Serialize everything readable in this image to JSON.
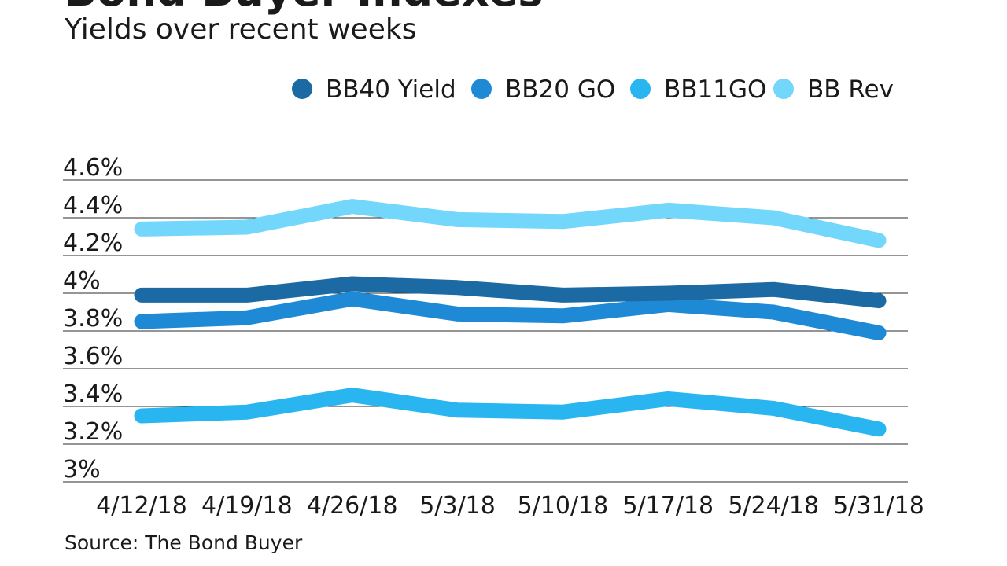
{
  "title": "Bond Buyer Indexes",
  "subtitle": "Yields over recent weeks",
  "source": "Source: The Bond Buyer",
  "chart_data": {
    "type": "line",
    "title": "Bond Buyer Indexes",
    "subtitle": "Yields over recent weeks",
    "xlabel": "",
    "ylabel": "",
    "categories": [
      "4/12/18",
      "4/19/18",
      "4/26/18",
      "5/3/18",
      "5/10/18",
      "5/17/18",
      "5/24/18",
      "5/31/18"
    ],
    "y_ticks": [
      "4.6%",
      "4.4%",
      "4.2%",
      "4%",
      "3.8%",
      "3.6%",
      "3.4%",
      "3.2%",
      "3%"
    ],
    "ylim": [
      3.0,
      4.6
    ],
    "grid": true,
    "legend_position": "top-right",
    "series": [
      {
        "name": "BB40 Yield",
        "color": "#1c6aa3",
        "values": [
          3.99,
          3.99,
          4.05,
          4.03,
          3.99,
          4.0,
          4.02,
          3.96
        ]
      },
      {
        "name": "BB20 GO",
        "color": "#1e8ad6",
        "values": [
          3.85,
          3.87,
          3.97,
          3.89,
          3.88,
          3.94,
          3.9,
          3.79
        ]
      },
      {
        "name": "BB11GO",
        "color": "#29b6f0",
        "values": [
          3.35,
          3.37,
          3.46,
          3.38,
          3.37,
          3.44,
          3.39,
          3.28
        ]
      },
      {
        "name": "BB Rev",
        "color": "#73d6fb",
        "values": [
          4.34,
          4.35,
          4.46,
          4.39,
          4.38,
          4.44,
          4.4,
          4.28
        ]
      }
    ]
  }
}
